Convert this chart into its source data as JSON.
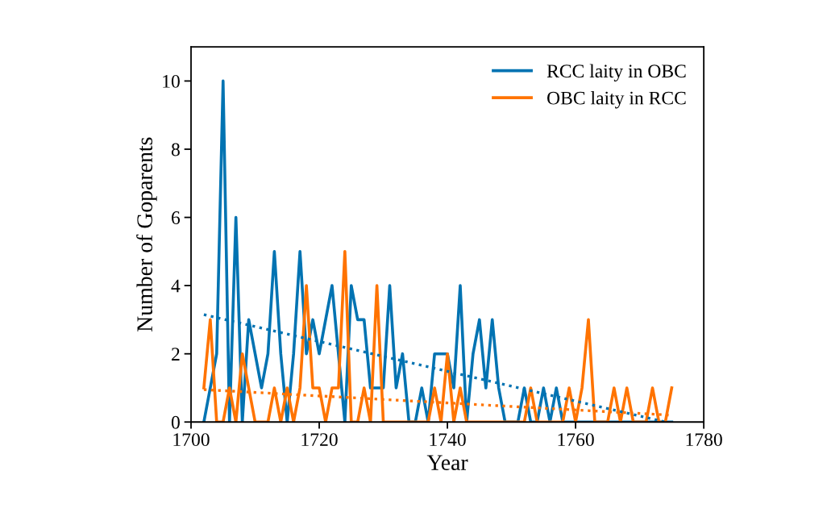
{
  "chart_data": {
    "type": "line",
    "xlabel": "Year",
    "ylabel": "Number of Goparents",
    "xlim": [
      1700,
      1780
    ],
    "xticks": [
      1700,
      1720,
      1740,
      1760,
      1780
    ],
    "ylim": [
      0,
      11
    ],
    "yticks": [
      0,
      2,
      4,
      6,
      8,
      10
    ],
    "grid": false,
    "legend": "top right",
    "marker": "none",
    "line_style": "solid",
    "x": [
      1702,
      1703,
      1704,
      1705,
      1706,
      1707,
      1708,
      1709,
      1710,
      1711,
      1712,
      1713,
      1714,
      1715,
      1716,
      1717,
      1718,
      1719,
      1720,
      1721,
      1722,
      1723,
      1724,
      1725,
      1726,
      1727,
      1728,
      1729,
      1730,
      1731,
      1732,
      1733,
      1734,
      1735,
      1736,
      1737,
      1738,
      1739,
      1740,
      1741,
      1742,
      1743,
      1744,
      1745,
      1746,
      1747,
      1748,
      1749,
      1750,
      1751,
      1752,
      1753,
      1754,
      1755,
      1756,
      1757,
      1758,
      1759,
      1760,
      1761,
      1762,
      1763,
      1764,
      1765,
      1766,
      1767,
      1768,
      1769,
      1770,
      1771,
      1772,
      1773,
      1774,
      1775
    ],
    "series": [
      {
        "name": "RCC laity in OBC",
        "color": "#0173b2",
        "values": [
          0,
          1,
          2,
          10,
          0,
          6,
          0,
          3,
          2,
          1,
          2,
          5,
          2,
          0,
          2,
          5,
          2,
          3,
          2,
          3,
          4,
          2,
          0,
          4,
          3,
          3,
          1,
          1,
          1,
          4,
          1,
          2,
          0,
          0,
          1,
          0,
          2,
          2,
          2,
          1,
          4,
          0,
          2,
          3,
          1,
          3,
          1,
          0,
          0,
          0,
          1,
          0,
          0,
          1,
          0,
          1,
          0,
          0,
          0,
          0,
          0,
          0,
          0,
          0,
          0,
          0,
          0,
          0,
          0,
          0,
          0,
          0,
          0,
          0
        ]
      },
      {
        "name": "OBC laity in RCC",
        "color": "#ff7300",
        "values": [
          1,
          3,
          0,
          0,
          1,
          0,
          2,
          1,
          0,
          0,
          0,
          1,
          0,
          1,
          0,
          1,
          4,
          1,
          1,
          0,
          1,
          1,
          5,
          0,
          0,
          1,
          0,
          4,
          0,
          0,
          0,
          0,
          0,
          0,
          0,
          0,
          1,
          0,
          2,
          0,
          1,
          0,
          0,
          0,
          0,
          0,
          0,
          0,
          0,
          0,
          0,
          1,
          0,
          0,
          0,
          0,
          0,
          1,
          0,
          1,
          3,
          0,
          0,
          0,
          1,
          0,
          1,
          0,
          0,
          0,
          1,
          0,
          0,
          1
        ]
      },
      {
        "type": "line",
        "color": "#0173b2",
        "line_style": "dotted",
        "x": [
          1702,
          1774
        ],
        "values": [
          3.15,
          0.0
        ]
      },
      {
        "type": "line",
        "color": "#ff7300",
        "line_style": "dotted",
        "x": [
          1702,
          1775
        ],
        "values": [
          0.95,
          0.2
        ]
      }
    ]
  }
}
